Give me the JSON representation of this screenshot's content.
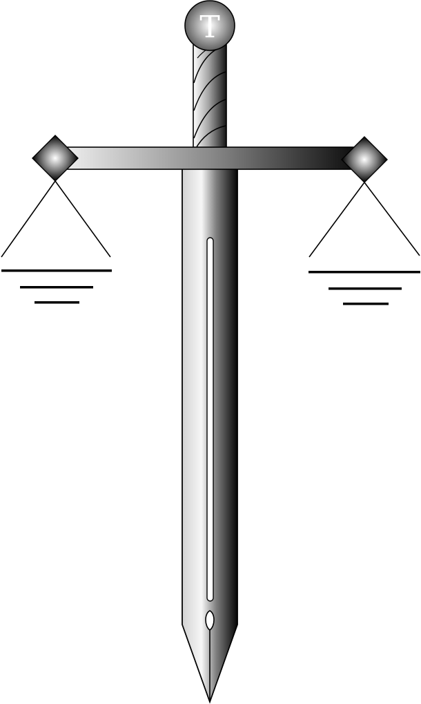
{
  "emblem": {
    "pommel_letter": "T",
    "icons": [
      "sword-pen-icon",
      "balance-scale-icon"
    ],
    "colors": {
      "background": "#ffffff",
      "outline": "#000000",
      "metal_light": "#f4f4f4",
      "metal_mid": "#9a9a9a",
      "metal_dark": "#0a0a0a"
    }
  }
}
